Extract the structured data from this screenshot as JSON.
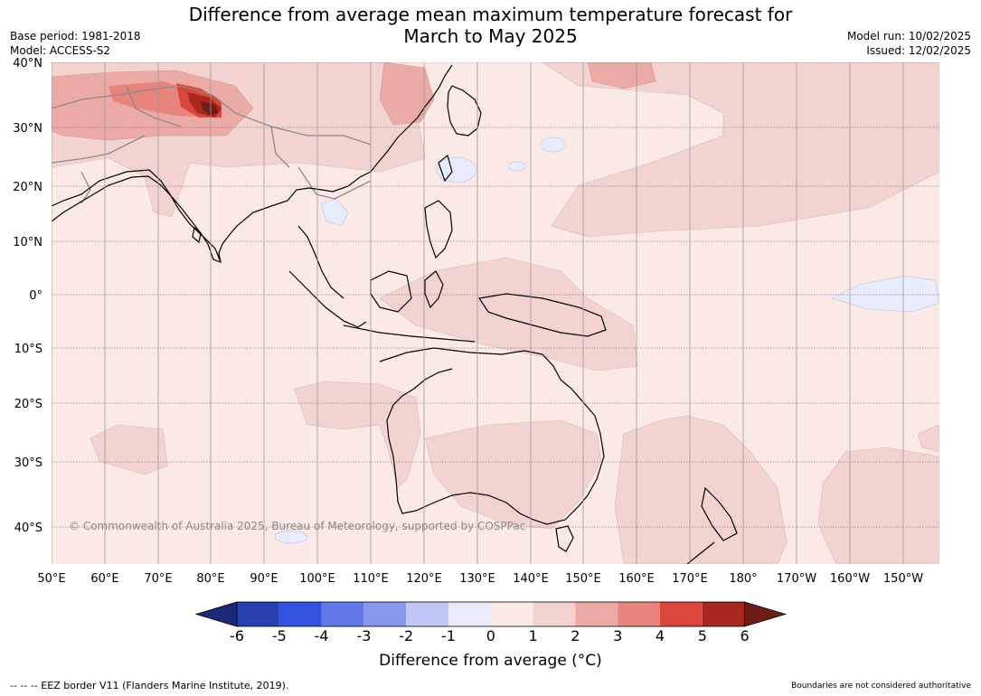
{
  "header": {
    "title_line1": "Difference from average mean maximum temperature forecast for",
    "title_line2": "March to May 2025",
    "base_period": "Base period: 1981-2018",
    "model": "Model: ACCESS-S2",
    "model_run": "Model run: 10/02/2025",
    "issued": "Issued: 12/02/2025"
  },
  "map": {
    "lat_labels": [
      "40°N",
      "30°N",
      "20°N",
      "10°N",
      "0°",
      "10°S",
      "20°S",
      "30°S",
      "40°S"
    ],
    "lon_labels": [
      "50°E",
      "60°E",
      "70°E",
      "80°E",
      "90°E",
      "100°E",
      "110°E",
      "120°E",
      "130°E",
      "140°E",
      "150°E",
      "160°E",
      "170°E",
      "180°",
      "170°W",
      "160°W",
      "150°W"
    ],
    "copyright": "© Commonwealth of Australia 2025, Bureau of Meteorology, supported by COSPPac",
    "colors": {
      "ocean_base": "#fbe9e6",
      "anomaly_0_1": "#fbe9e6",
      "anomaly_1_2": "#f3d3d0",
      "anomaly_2_3": "#ecaaa6",
      "anomaly_3_4": "#e7857d",
      "anomaly_4_5": "#d9473a",
      "anomaly_5_6": "#a8281f",
      "anomaly_gt_6": "#6e1d17",
      "anomaly_neg_1_0": "#e8ebfb",
      "coastline": "#000000",
      "borders": "#8a8a8a"
    }
  },
  "colorbar": {
    "ticks": [
      "-6",
      "-5",
      "-4",
      "-3",
      "-2",
      "-1",
      "0",
      "1",
      "2",
      "3",
      "4",
      "5",
      "6"
    ],
    "colors": [
      "#1b2a78",
      "#2a3fb0",
      "#3352e0",
      "#6079e6",
      "#8797ec",
      "#c0c7f4",
      "#e8ebfb",
      "#fbe9e6",
      "#f3d3d0",
      "#ecaaa6",
      "#e7857d",
      "#d9473a",
      "#a8281f",
      "#6e1d17"
    ],
    "title": "Difference from average (°C)"
  },
  "footer": {
    "eez_note": "--  --  -- EEZ border V11 (Flanders Marine Institute, 2019).",
    "disclaimer": "Boundaries are not considered authoritative"
  }
}
